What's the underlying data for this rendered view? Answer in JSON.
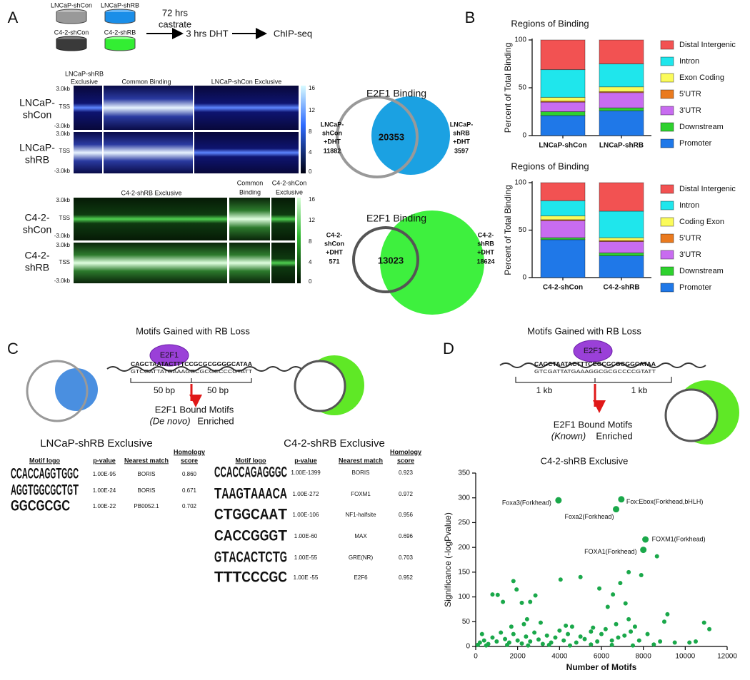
{
  "panel_a": {
    "label": "A",
    "cells": [
      "LNCaP-shCon",
      "LNCaP-shRB",
      "C4-2-shCon",
      "C4-2-shRB"
    ],
    "treatment": [
      "72 hrs",
      "castrate",
      "3 hrs DHT",
      "ChIP-seq"
    ],
    "heatmap_top": {
      "headers": [
        "LNCaP-shRB",
        "Exclusive",
        "Common Binding",
        "LNCaP-shCon Exclusive"
      ],
      "rows": [
        [
          "LNCaP-",
          "shCon"
        ],
        [
          "LNCaP-",
          "shRB"
        ]
      ],
      "axis": [
        "3.0kb",
        "TSS",
        "-3.0kb"
      ],
      "colorbar": [
        16,
        12,
        8,
        4,
        0
      ]
    },
    "heatmap_bottom": {
      "headers": [
        "C4-2-shRB Exclusive",
        "Common",
        "Binding",
        "C4-2-shCon",
        "Exclusive"
      ],
      "rows": [
        [
          "C4-2-",
          "shCon"
        ],
        [
          "C4-2-",
          "shRB"
        ]
      ],
      "axis": [
        "3.0kb",
        "TSS",
        "-3.0kb"
      ],
      "colorbar": [
        16,
        12,
        8,
        4,
        0
      ]
    },
    "venn_top": {
      "title": "E2F1 Binding",
      "overlap": 20353,
      "left": [
        "LNCaP-",
        "shCon",
        "+DHT",
        "11882"
      ],
      "right": [
        "LNCaP-",
        "shRB",
        "+DHT",
        "3597"
      ]
    },
    "venn_bottom": {
      "title": "E2F1 Binding",
      "overlap": 13023,
      "left": [
        "C4-2-",
        "shCon",
        "+DHT",
        "571"
      ],
      "right": [
        "C4-2-",
        "shRB",
        "+DHT",
        "18624"
      ]
    }
  },
  "panel_b": {
    "label": "B"
  },
  "panel_c": {
    "label": "C",
    "title": "Motifs Gained with RB Loss",
    "protein": "E2F1",
    "sequence": "CAGCTAATACTTTCCGCGCGGGGCATAA",
    "complement": "GTCGATTATGAAAGGCGCGCCCCGTATT",
    "flanks": [
      "50 bp",
      "50 bp"
    ],
    "result": "E2F1 Bound Motifs",
    "method": "(De novo)",
    "enriched": "Enriched"
  },
  "panel_d": {
    "label": "D",
    "title": "Motifs Gained with RB Loss",
    "protein": "E2F1",
    "sequence": "CAGCTAATACTTTCCGCGCGGGGCATAA",
    "complement": "GTCGATTATGAAAGGCGCGCCCCGTATT",
    "flanks": [
      "1 kb",
      "1 kb"
    ],
    "result": "E2F1 Bound Motifs",
    "method": "(Known)",
    "enriched": "Enriched"
  },
  "motif_tables": [
    {
      "title": "LNCaP-shRB Exclusive",
      "header": {
        "logo": "Motif logo",
        "p_value": "p-value",
        "match": "Nearest match",
        "score": [
          "Homology",
          "score"
        ]
      },
      "rows": [
        {
          "logo": [
            "C",
            "C",
            "A",
            "C",
            "C",
            "A",
            "G",
            "G",
            "T",
            "G",
            "G",
            "C"
          ],
          "p_value": "1.00E-95",
          "match": "BORIS",
          "score": "0.860"
        },
        {
          "logo": [
            "A",
            "G",
            "G",
            "T",
            "G",
            "G",
            "C",
            "G",
            "C",
            "T",
            "G",
            "T"
          ],
          "p_value": "1.00E-24",
          "match": "BORIS",
          "score": "0.671"
        },
        {
          "logo": [
            "G",
            "G",
            "C",
            "G",
            "C",
            "G",
            "C"
          ],
          "p_value": "1.00E-22",
          "match": "PB0052.1",
          "score": "0.702"
        }
      ]
    },
    {
      "title": "C4-2-shRB Exclusive",
      "header": {
        "logo": "Motif logo",
        "p_value": "p-value",
        "match": "Nearest match",
        "score": [
          "Homology",
          "score"
        ]
      },
      "rows": [
        {
          "logo": [
            "C",
            "C",
            "A",
            "C",
            "C",
            "A",
            "G",
            "A",
            "G",
            "G",
            "G",
            "C"
          ],
          "p_value": "1.00E-1399",
          "match": "BORIS",
          "score": "0.923"
        },
        {
          "logo": [
            "T",
            "A",
            "A",
            "G",
            "T",
            "A",
            "A",
            "A",
            "C",
            "A"
          ],
          "p_value": "1.00E-272",
          "match": "FOXM1",
          "score": "0.972"
        },
        {
          "logo": [
            "C",
            "T",
            "G",
            "G",
            "C",
            "A",
            "A",
            "T"
          ],
          "p_value": "1.00E-106",
          "match": "NF1-halfsite",
          "score": "0.956"
        },
        {
          "logo": [
            "C",
            "A",
            "C",
            "C",
            "G",
            "G",
            "G",
            "T"
          ],
          "p_value": "1.00E-60",
          "match": "MAX",
          "score": "0.696"
        },
        {
          "logo": [
            "G",
            "T",
            "A",
            "C",
            "A",
            "C",
            "T",
            "C",
            "T",
            "G"
          ],
          "p_value": "1.00E-55",
          "match": "GRE(NR)",
          "score": "0.703"
        },
        {
          "logo": [
            "T",
            "T",
            "T",
            "C",
            "C",
            "C",
            "G",
            "C"
          ],
          "p_value": "1.00E -55",
          "match": "E2F6",
          "score": "0.952"
        }
      ]
    }
  ],
  "chart_data": [
    {
      "type": "bar",
      "stacked": true,
      "title": "Regions of Binding",
      "ylabel": "Percent of Total Binding",
      "categories": [
        "LNCaP-shCon",
        "LNCaP-shRB"
      ],
      "ylim": [
        0,
        100
      ],
      "yticks": [
        0,
        50,
        100
      ],
      "series": [
        {
          "name": "Promoter",
          "color": "#1f78e8",
          "values": [
            21,
            26
          ]
        },
        {
          "name": "Downstream",
          "color": "#2ed12e",
          "values": [
            4,
            3
          ]
        },
        {
          "name": "3'UTR",
          "color": "#c86cf0",
          "values": [
            10,
            16
          ]
        },
        {
          "name": "5'UTR",
          "color": "#ea7a1e",
          "values": [
            1,
            1
          ]
        },
        {
          "name": "Exon Coding",
          "color": "#fbfb5a",
          "values": [
            4,
            5
          ]
        },
        {
          "name": "Intron",
          "color": "#1fe6ec",
          "values": [
            29,
            24
          ]
        },
        {
          "name": "Distal Intergenic",
          "color": "#f25252",
          "values": [
            31,
            25
          ]
        }
      ]
    },
    {
      "type": "bar",
      "stacked": true,
      "title": "Regions of Binding",
      "ylabel": "Percent of Total Binding",
      "categories": [
        "C4-2-shCon",
        "C4-2-shRB"
      ],
      "ylim": [
        0,
        100
      ],
      "yticks": [
        0,
        50,
        100
      ],
      "series": [
        {
          "name": "Promoter",
          "color": "#1f78e8",
          "values": [
            40,
            23
          ]
        },
        {
          "name": "Downstream",
          "color": "#2ed12e",
          "values": [
            2,
            3
          ]
        },
        {
          "name": "3'UTR",
          "color": "#c86cf0",
          "values": [
            18,
            12
          ]
        },
        {
          "name": "5'UTR",
          "color": "#ea7a1e",
          "values": [
            1,
            1
          ]
        },
        {
          "name": "Coding Exon",
          "color": "#fbfb5a",
          "values": [
            4,
            3
          ]
        },
        {
          "name": "Intron",
          "color": "#1fe6ec",
          "values": [
            16,
            28
          ]
        },
        {
          "name": "Distal Intergenic",
          "color": "#f25252",
          "values": [
            19,
            30
          ]
        }
      ]
    },
    {
      "type": "scatter",
      "title": "C4-2-shRB Exclusive",
      "xlabel": "Number of Motifs",
      "ylabel": "Significance (-logPvalue)",
      "color": "#1aa84a",
      "xlim": [
        0,
        12000
      ],
      "ylim": [
        0,
        350
      ],
      "xticks": [
        0,
        2000,
        4000,
        6000,
        8000,
        10000,
        12000
      ],
      "yticks": [
        0,
        50,
        100,
        150,
        200,
        250,
        300,
        350
      ],
      "x": [
        800,
        1050,
        1300,
        1800,
        1950,
        2200,
        2450,
        2600,
        2850,
        4050,
        5000,
        5900,
        6300,
        6550,
        6900,
        7150,
        7300,
        7900,
        8650,
        9150,
        9000,
        10900,
        11150,
        10500,
        10200,
        9500,
        8800,
        8200,
        7800,
        7600,
        7400,
        7100,
        6800,
        6500,
        6200,
        6000,
        5800,
        5500,
        5200,
        5000,
        4800,
        4600,
        4400,
        4200,
        4000,
        3800,
        3600,
        3400,
        3200,
        3000,
        2800,
        2600,
        2400,
        2200,
        2000,
        1800,
        1600,
        1400,
        1200,
        1000,
        800,
        600,
        400,
        300,
        200,
        100,
        500,
        1500,
        2500,
        3500,
        4500,
        5500,
        6500,
        7500,
        8500,
        1700,
        2300,
        3100,
        4300,
        5600,
        6700,
        7300
      ],
      "values": [
        105,
        104,
        90,
        132,
        115,
        88,
        55,
        90,
        103,
        135,
        140,
        117,
        80,
        105,
        128,
        87,
        150,
        144,
        182,
        65,
        50,
        48,
        35,
        10,
        8,
        8,
        10,
        25,
        12,
        40,
        30,
        22,
        18,
        12,
        35,
        25,
        10,
        30,
        15,
        20,
        8,
        40,
        25,
        12,
        32,
        18,
        8,
        22,
        5,
        14,
        28,
        10,
        20,
        6,
        12,
        25,
        8,
        15,
        28,
        10,
        18,
        5,
        12,
        25,
        8,
        3,
        2,
        3,
        2,
        3,
        2,
        4,
        3,
        2,
        4,
        40,
        45,
        48,
        42,
        38,
        45,
        55
      ],
      "annotations": [
        {
          "text": "Foxa3(Forkhead)",
          "x": 3950,
          "y": 295
        },
        {
          "text": "Fox:Ebox(Forkhead,bHLH)",
          "x": 6950,
          "y": 297
        },
        {
          "text": "Foxa2(Forkhead)",
          "x": 6700,
          "y": 277
        },
        {
          "text": "FOXM1(Forkhead)",
          "x": 8100,
          "y": 216
        },
        {
          "text": "FOXA1(Forkhead)",
          "x": 8000,
          "y": 195
        }
      ]
    }
  ]
}
